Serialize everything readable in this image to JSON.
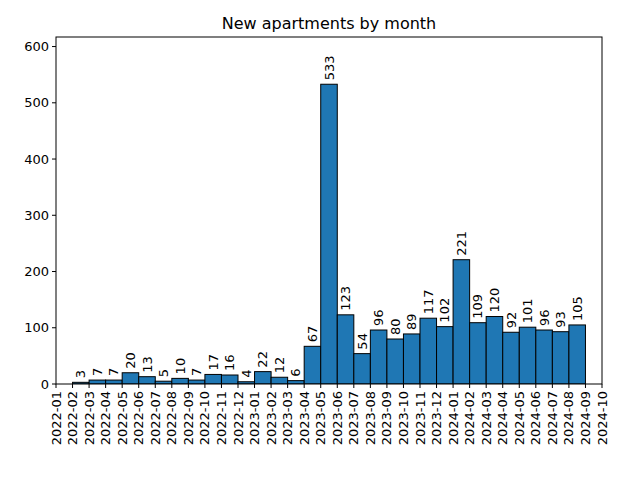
{
  "chart_data": {
    "type": "histogram",
    "title": "New apartments by month",
    "bins": [
      "2022-02",
      "2022-03",
      "2022-04",
      "2022-05",
      "2022-06",
      "2022-07",
      "2022-08",
      "2022-09",
      "2022-10",
      "2022-11",
      "2022-12",
      "2023-01",
      "2023-02",
      "2023-03",
      "2023-04",
      "2023-05",
      "2023-06",
      "2023-07",
      "2023-08",
      "2023-09",
      "2023-10",
      "2023-11",
      "2023-12",
      "2024-01",
      "2024-02",
      "2024-03",
      "2024-04",
      "2024-05",
      "2024-06",
      "2024-07",
      "2024-08",
      "2024-09"
    ],
    "values": [
      3,
      7,
      7,
      20,
      13,
      5,
      10,
      7,
      17,
      16,
      4,
      22,
      12,
      6,
      67,
      533,
      123,
      54,
      96,
      80,
      89,
      117,
      102,
      221,
      109,
      120,
      92,
      101,
      96,
      93,
      105
    ],
    "color": "#1f77b4",
    "xlim": [
      "2022-01",
      "2024-10"
    ],
    "xticks": [
      "2022-01",
      "2022-02",
      "2022-03",
      "2022-04",
      "2022-05",
      "2022-06",
      "2022-07",
      "2022-08",
      "2022-09",
      "2022-10",
      "2022-11",
      "2022-12",
      "2023-01",
      "2023-02",
      "2023-03",
      "2023-04",
      "2023-05",
      "2023-06",
      "2023-07",
      "2023-08",
      "2023-09",
      "2023-10",
      "2023-11",
      "2023-12",
      "2024-01",
      "2024-02",
      "2024-03",
      "2024-04",
      "2024-05",
      "2024-06",
      "2024-07",
      "2024-08",
      "2024-09",
      "2024-10"
    ],
    "ylim": [
      0,
      617
    ],
    "yticks": [
      0,
      100,
      200,
      300,
      400,
      500,
      600
    ],
    "data_labels": true,
    "grid": false
  }
}
